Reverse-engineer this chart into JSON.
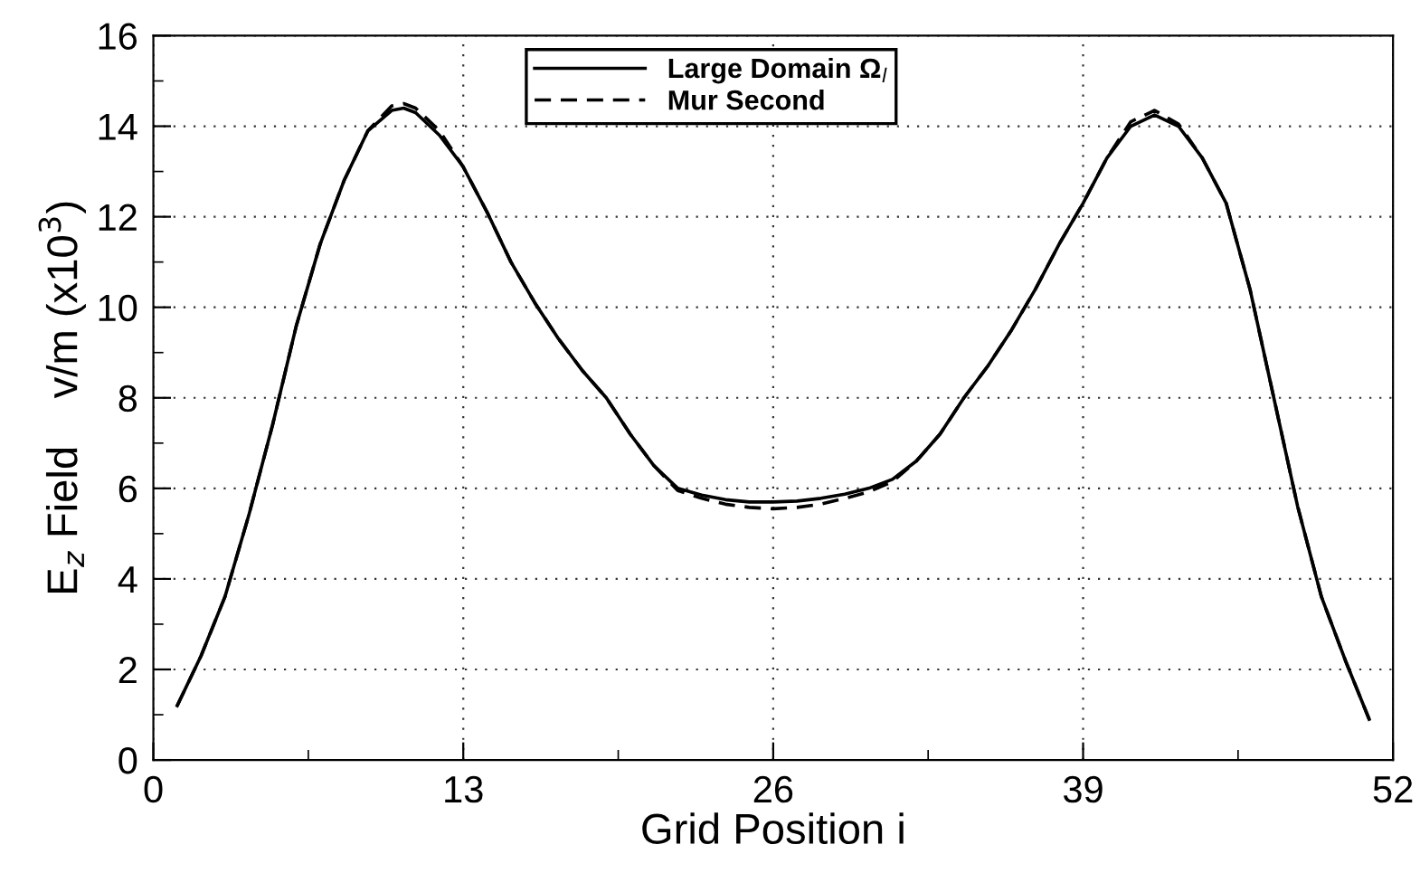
{
  "chart_data": {
    "type": "line",
    "xlabel": "Grid Position i",
    "ylabel": "E$_{z}$ Field    v/m (x10$^{3}$)",
    "x": [
      1,
      2,
      3,
      4,
      5,
      6,
      7,
      8,
      9,
      10,
      10.5,
      11,
      12,
      13,
      14,
      15,
      16,
      17,
      18,
      19,
      20,
      21,
      22,
      23,
      24,
      25,
      26,
      27,
      28,
      29,
      30,
      31,
      32,
      33,
      34,
      35,
      36,
      37,
      38,
      39,
      40,
      41,
      42,
      43,
      44,
      45,
      46,
      47,
      48,
      49,
      50,
      51
    ],
    "series": [
      {
        "name": "Large Domain Ω$_{l}$",
        "color": "#000000",
        "line_style": "solid",
        "values": [
          1.2,
          2.3,
          3.6,
          5.4,
          7.4,
          9.6,
          11.4,
          12.8,
          13.9,
          14.35,
          14.4,
          14.3,
          13.8,
          13.1,
          12.1,
          11.0,
          10.1,
          9.3,
          8.6,
          8.0,
          7.2,
          6.5,
          6.0,
          5.85,
          5.75,
          5.7,
          5.7,
          5.72,
          5.78,
          5.87,
          6.0,
          6.2,
          6.6,
          7.2,
          8.0,
          8.7,
          9.5,
          10.4,
          11.4,
          12.3,
          13.3,
          14.0,
          14.25,
          14.0,
          13.3,
          12.3,
          10.4,
          8.0,
          5.6,
          3.6,
          2.2,
          0.9
        ]
      },
      {
        "name": "Mur Second",
        "color": "#000000",
        "line_style": "dashed",
        "values": [
          1.2,
          2.3,
          3.6,
          5.4,
          7.4,
          9.6,
          11.4,
          12.8,
          13.9,
          14.45,
          14.5,
          14.4,
          13.9,
          13.1,
          12.1,
          11.0,
          10.1,
          9.3,
          8.6,
          8.0,
          7.2,
          6.5,
          5.95,
          5.78,
          5.65,
          5.58,
          5.55,
          5.58,
          5.65,
          5.78,
          5.92,
          6.15,
          6.6,
          7.2,
          8.0,
          8.7,
          9.5,
          10.4,
          11.4,
          12.3,
          13.3,
          14.1,
          14.35,
          14.05,
          13.3,
          12.3,
          10.4,
          8.0,
          5.6,
          3.6,
          2.2,
          0.9
        ]
      }
    ],
    "xlim": [
      0,
      52
    ],
    "xticks": [
      0,
      {
        "value": 6.5,
        "label": null
      },
      13,
      {
        "value": 19.5,
        "label": null
      },
      26,
      {
        "value": 32.5,
        "label": null
      },
      39,
      {
        "value": 45.5,
        "label": null
      },
      52
    ],
    "ylim": [
      0,
      16
    ],
    "yticks": [
      0,
      {
        "value": 1,
        "label": null
      },
      2,
      {
        "value": 3,
        "label": null
      },
      4,
      {
        "value": 5,
        "label": null
      },
      6,
      {
        "value": 7,
        "label": null
      },
      8,
      {
        "value": 9,
        "label": null
      },
      10,
      {
        "value": 11,
        "label": null
      },
      12,
      {
        "value": 13,
        "label": null
      },
      14,
      {
        "value": 15,
        "label": null
      },
      16
    ],
    "grid": true,
    "legend": "top",
    "marker": "none"
  }
}
